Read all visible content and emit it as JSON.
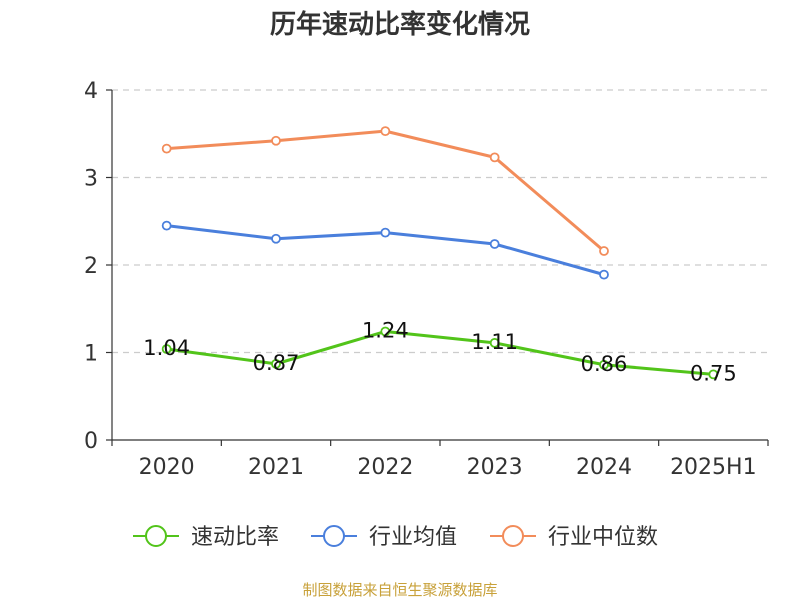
{
  "chart_data": {
    "type": "line",
    "title": "历年速动比率变化情况",
    "categories": [
      "2020",
      "2021",
      "2022",
      "2023",
      "2024",
      "2025H1"
    ],
    "ylim": [
      0,
      4
    ],
    "yticks": [
      0,
      1,
      2,
      3,
      4
    ],
    "grid": true,
    "legend_position": "bottom",
    "series": [
      {
        "name": "速动比率",
        "color": "#52c41a",
        "values": [
          1.04,
          0.87,
          1.24,
          1.11,
          0.86,
          0.75
        ],
        "labels": true
      },
      {
        "name": "行业均值",
        "color": "#4a7fdc",
        "values": [
          2.45,
          2.3,
          2.37,
          2.24,
          1.89,
          null
        ],
        "labels": false
      },
      {
        "name": "行业中位数",
        "color": "#f28c5a",
        "values": [
          3.33,
          3.42,
          3.53,
          3.23,
          2.16,
          null
        ],
        "labels": false
      }
    ]
  },
  "footer": {
    "source": "制图数据来自恒生聚源数据库"
  }
}
